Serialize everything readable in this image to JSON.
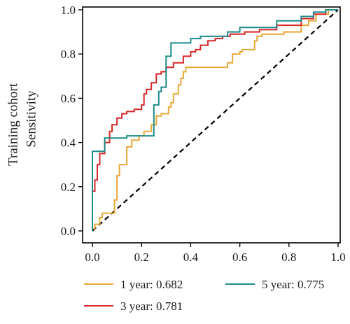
{
  "chart_data": {
    "type": "line",
    "title": "",
    "ylabel_line1": "Training cohort",
    "ylabel_line2": "Sensitivity",
    "xlabel": "",
    "xlim": [
      0,
      1
    ],
    "ylim": [
      0,
      1
    ],
    "x_ticks": [
      "0.0",
      "0.2",
      "0.4",
      "0.6",
      "0.8",
      "1.0"
    ],
    "y_ticks": [
      "0.0",
      "0.2",
      "0.4",
      "0.6",
      "0.8",
      "1.0"
    ],
    "grid": false,
    "legend_position": "bottom",
    "diagonal": {
      "style": "dashed",
      "color": "#000000"
    },
    "series": [
      {
        "name": "1 year: 0.682",
        "color": "#E8A838",
        "points": [
          [
            0,
            0
          ],
          [
            0,
            0.01
          ],
          [
            0.01,
            0.01
          ],
          [
            0.01,
            0.03
          ],
          [
            0.03,
            0.03
          ],
          [
            0.03,
            0.06
          ],
          [
            0.04,
            0.06
          ],
          [
            0.04,
            0.08
          ],
          [
            0.09,
            0.08
          ],
          [
            0.09,
            0.14
          ],
          [
            0.1,
            0.14
          ],
          [
            0.1,
            0.25
          ],
          [
            0.11,
            0.25
          ],
          [
            0.11,
            0.3
          ],
          [
            0.14,
            0.3
          ],
          [
            0.14,
            0.38
          ],
          [
            0.16,
            0.38
          ],
          [
            0.16,
            0.41
          ],
          [
            0.19,
            0.41
          ],
          [
            0.19,
            0.43
          ],
          [
            0.21,
            0.43
          ],
          [
            0.21,
            0.45
          ],
          [
            0.24,
            0.45
          ],
          [
            0.24,
            0.48
          ],
          [
            0.26,
            0.48
          ],
          [
            0.26,
            0.52
          ],
          [
            0.28,
            0.52
          ],
          [
            0.28,
            0.53
          ],
          [
            0.31,
            0.53
          ],
          [
            0.31,
            0.56
          ],
          [
            0.32,
            0.56
          ],
          [
            0.32,
            0.58
          ],
          [
            0.33,
            0.58
          ],
          [
            0.33,
            0.62
          ],
          [
            0.35,
            0.62
          ],
          [
            0.35,
            0.66
          ],
          [
            0.36,
            0.66
          ],
          [
            0.36,
            0.69
          ],
          [
            0.37,
            0.69
          ],
          [
            0.37,
            0.72
          ],
          [
            0.38,
            0.72
          ],
          [
            0.38,
            0.74
          ],
          [
            0.55,
            0.74
          ],
          [
            0.55,
            0.76
          ],
          [
            0.57,
            0.76
          ],
          [
            0.57,
            0.8
          ],
          [
            0.6,
            0.8
          ],
          [
            0.6,
            0.81
          ],
          [
            0.61,
            0.81
          ],
          [
            0.61,
            0.82
          ],
          [
            0.66,
            0.82
          ],
          [
            0.66,
            0.86
          ],
          [
            0.67,
            0.86
          ],
          [
            0.67,
            0.88
          ],
          [
            0.69,
            0.88
          ],
          [
            0.69,
            0.89
          ],
          [
            0.78,
            0.89
          ],
          [
            0.78,
            0.9
          ],
          [
            0.85,
            0.9
          ],
          [
            0.85,
            0.93
          ],
          [
            0.88,
            0.93
          ],
          [
            0.88,
            0.95
          ],
          [
            0.91,
            0.95
          ],
          [
            0.91,
            0.98
          ],
          [
            0.96,
            0.98
          ],
          [
            0.96,
            1
          ],
          [
            1,
            1
          ]
        ]
      },
      {
        "name": "3 year: 0.781",
        "color": "#D62728",
        "points": [
          [
            0,
            0
          ],
          [
            0,
            0.18
          ],
          [
            0.01,
            0.18
          ],
          [
            0.01,
            0.23
          ],
          [
            0.02,
            0.23
          ],
          [
            0.02,
            0.3
          ],
          [
            0.03,
            0.3
          ],
          [
            0.03,
            0.35
          ],
          [
            0.05,
            0.35
          ],
          [
            0.05,
            0.4
          ],
          [
            0.07,
            0.4
          ],
          [
            0.07,
            0.45
          ],
          [
            0.08,
            0.45
          ],
          [
            0.08,
            0.48
          ],
          [
            0.1,
            0.48
          ],
          [
            0.1,
            0.51
          ],
          [
            0.12,
            0.51
          ],
          [
            0.12,
            0.53
          ],
          [
            0.14,
            0.53
          ],
          [
            0.14,
            0.54
          ],
          [
            0.17,
            0.54
          ],
          [
            0.17,
            0.55
          ],
          [
            0.2,
            0.55
          ],
          [
            0.2,
            0.57
          ],
          [
            0.21,
            0.57
          ],
          [
            0.21,
            0.62
          ],
          [
            0.22,
            0.62
          ],
          [
            0.22,
            0.64
          ],
          [
            0.24,
            0.64
          ],
          [
            0.24,
            0.67
          ],
          [
            0.26,
            0.67
          ],
          [
            0.26,
            0.71
          ],
          [
            0.28,
            0.71
          ],
          [
            0.28,
            0.72
          ],
          [
            0.3,
            0.72
          ],
          [
            0.3,
            0.74
          ],
          [
            0.33,
            0.74
          ],
          [
            0.33,
            0.76
          ],
          [
            0.37,
            0.76
          ],
          [
            0.37,
            0.79
          ],
          [
            0.4,
            0.79
          ],
          [
            0.4,
            0.81
          ],
          [
            0.42,
            0.81
          ],
          [
            0.42,
            0.82
          ],
          [
            0.44,
            0.82
          ],
          [
            0.44,
            0.84
          ],
          [
            0.47,
            0.84
          ],
          [
            0.47,
            0.86
          ],
          [
            0.5,
            0.86
          ],
          [
            0.5,
            0.87
          ],
          [
            0.53,
            0.87
          ],
          [
            0.53,
            0.88
          ],
          [
            0.56,
            0.88
          ],
          [
            0.56,
            0.89
          ],
          [
            0.62,
            0.89
          ],
          [
            0.62,
            0.9
          ],
          [
            0.68,
            0.9
          ],
          [
            0.68,
            0.91
          ],
          [
            0.75,
            0.91
          ],
          [
            0.75,
            0.93
          ],
          [
            0.85,
            0.93
          ],
          [
            0.85,
            0.96
          ],
          [
            0.9,
            0.96
          ],
          [
            0.9,
            0.98
          ],
          [
            0.95,
            0.98
          ],
          [
            0.95,
            1
          ],
          [
            1,
            1
          ]
        ]
      },
      {
        "name": "5 year: 0.775",
        "color": "#1F8A8A",
        "points": [
          [
            0,
            0
          ],
          [
            0,
            0.36
          ],
          [
            0.05,
            0.36
          ],
          [
            0.05,
            0.42
          ],
          [
            0.14,
            0.42
          ],
          [
            0.14,
            0.43
          ],
          [
            0.25,
            0.43
          ],
          [
            0.25,
            0.57
          ],
          [
            0.27,
            0.57
          ],
          [
            0.27,
            0.63
          ],
          [
            0.28,
            0.63
          ],
          [
            0.28,
            0.65
          ],
          [
            0.3,
            0.65
          ],
          [
            0.3,
            0.79
          ],
          [
            0.32,
            0.79
          ],
          [
            0.32,
            0.85
          ],
          [
            0.4,
            0.85
          ],
          [
            0.4,
            0.87
          ],
          [
            0.44,
            0.87
          ],
          [
            0.44,
            0.88
          ],
          [
            0.55,
            0.88
          ],
          [
            0.55,
            0.9
          ],
          [
            0.6,
            0.9
          ],
          [
            0.6,
            0.92
          ],
          [
            0.75,
            0.92
          ],
          [
            0.75,
            0.95
          ],
          [
            0.85,
            0.95
          ],
          [
            0.85,
            0.97
          ],
          [
            0.9,
            0.97
          ],
          [
            0.9,
            0.99
          ],
          [
            0.95,
            0.99
          ],
          [
            0.95,
            1
          ],
          [
            1,
            1
          ]
        ]
      }
    ]
  }
}
